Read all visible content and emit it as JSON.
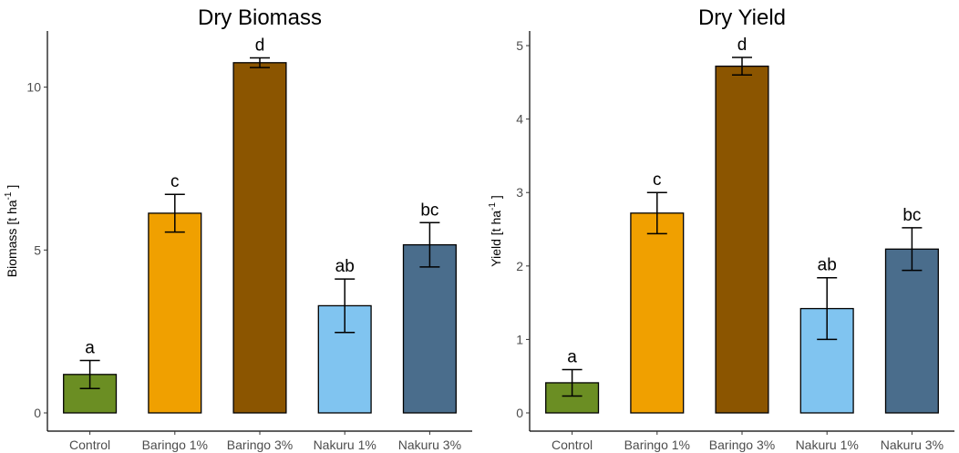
{
  "chart_data": [
    {
      "type": "bar",
      "title": "Dry Biomass",
      "xlabel": "",
      "ylabel": "Biomass [t ha",
      "ylabel_sup": "-1",
      "ylabel_end": "]",
      "ylim": [
        0,
        11.5
      ],
      "yticks": [
        0,
        5,
        10
      ],
      "categories": [
        "Control",
        "Baringo 1%",
        "Baringo 3%",
        "Nakuru 1%",
        "Nakuru 3%"
      ],
      "values": [
        1.18,
        6.13,
        10.75,
        3.29,
        5.16
      ],
      "errors": [
        0.43,
        0.58,
        0.15,
        0.82,
        0.68
      ],
      "letters": [
        "a",
        "c",
        "d",
        "ab",
        "bc"
      ],
      "colors": [
        "#6b8e23",
        "#f0a000",
        "#8b5500",
        "#80c4f0",
        "#4a6d8c"
      ]
    },
    {
      "type": "bar",
      "title": "Dry Yield",
      "xlabel": "",
      "ylabel": "Yield [t ha",
      "ylabel_sup": "-1",
      "ylabel_end": "]",
      "ylim": [
        0,
        5.1
      ],
      "yticks": [
        0,
        1,
        2,
        3,
        4,
        5
      ],
      "categories": [
        "Control",
        "Baringo 1%",
        "Baringo 3%",
        "Nakuru 1%",
        "Nakuru 3%"
      ],
      "values": [
        0.41,
        2.72,
        4.72,
        1.42,
        2.23
      ],
      "errors": [
        0.18,
        0.28,
        0.12,
        0.42,
        0.29
      ],
      "letters": [
        "a",
        "c",
        "d",
        "ab",
        "bc"
      ],
      "colors": [
        "#6b8e23",
        "#f0a000",
        "#8b5500",
        "#80c4f0",
        "#4a6d8c"
      ]
    }
  ]
}
